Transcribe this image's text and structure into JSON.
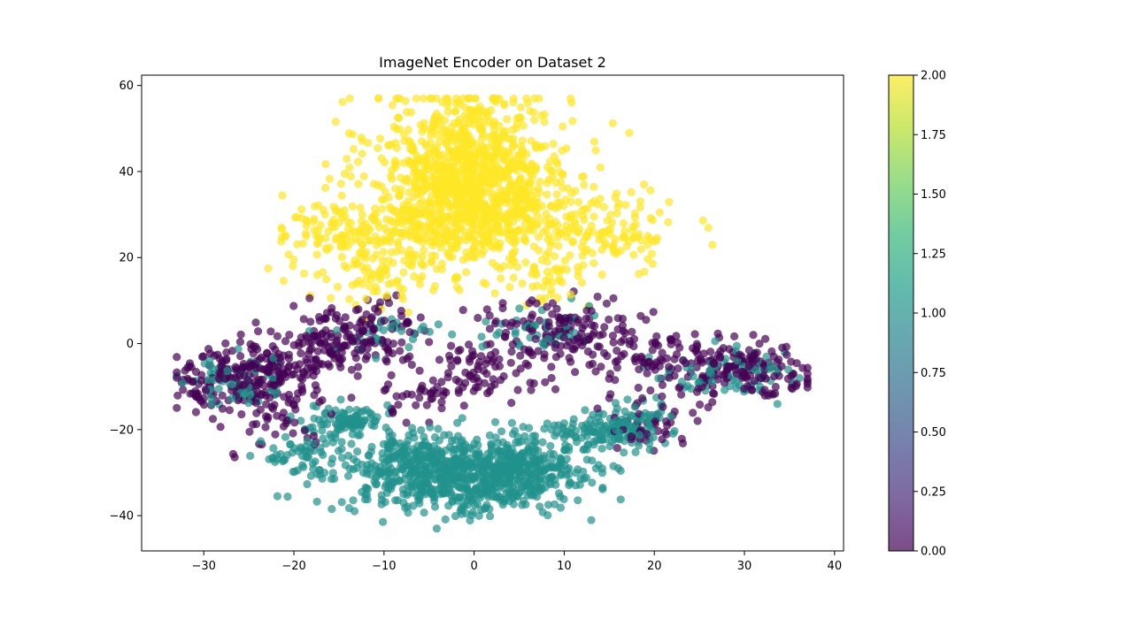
{
  "chart_data": {
    "type": "scatter",
    "title": "ImageNet Encoder on Dataset 2",
    "xlabel": "",
    "ylabel": "",
    "xlim": [
      -36.9,
      41.0
    ],
    "ylim": [
      -48.2,
      62.4
    ],
    "xticks": [
      -30,
      -20,
      -10,
      0,
      10,
      20,
      30,
      40
    ],
    "yticks": [
      -40,
      -20,
      0,
      20,
      40,
      60
    ],
    "grid": false,
    "legend": "none",
    "marker_alpha": 0.7,
    "colorbar": {
      "colormap": "viridis",
      "range": [
        0.0,
        2.0
      ],
      "ticks": [
        "0.00",
        "0.25",
        "0.50",
        "0.75",
        "1.00",
        "1.25",
        "1.50",
        "1.75",
        "2.00"
      ]
    },
    "class_colors": [
      "#440154",
      "#21918c",
      "#fde725"
    ],
    "clusters": [
      {
        "label": 2,
        "center": [
          -0.5,
          42.0
        ],
        "spread": [
          5.5,
          9.0
        ],
        "count": 700
      },
      {
        "label": 2,
        "center": [
          -0.5,
          33.0
        ],
        "spread": [
          4.0,
          7.0
        ],
        "count": 350
      },
      {
        "label": 2,
        "center": [
          -8.0,
          26.0
        ],
        "spread": [
          6.0,
          5.0
        ],
        "count": 180
      },
      {
        "label": 2,
        "center": [
          9.0,
          27.0
        ],
        "spread": [
          6.5,
          6.0
        ],
        "count": 170
      },
      {
        "label": 2,
        "center": [
          -15.0,
          27.0
        ],
        "spread": [
          4.0,
          3.0
        ],
        "count": 60
      },
      {
        "label": 2,
        "center": [
          17.0,
          25.0
        ],
        "spread": [
          3.5,
          2.5
        ],
        "count": 50
      },
      {
        "label": 2,
        "center": [
          -11.0,
          14.0
        ],
        "spread": [
          3.0,
          3.5
        ],
        "count": 60
      },
      {
        "label": 2,
        "center": [
          8.0,
          15.0
        ],
        "spread": [
          2.5,
          2.5
        ],
        "count": 40
      },
      {
        "label": 1,
        "center": [
          -1.0,
          -31.0
        ],
        "spread": [
          6.5,
          4.5
        ],
        "count": 650
      },
      {
        "label": 1,
        "center": [
          -7.0,
          -27.0
        ],
        "spread": [
          3.0,
          3.5
        ],
        "count": 120
      },
      {
        "label": 1,
        "center": [
          6.0,
          -27.0
        ],
        "spread": [
          3.0,
          3.5
        ],
        "count": 120
      },
      {
        "label": 1,
        "center": [
          -14.0,
          -18.0
        ],
        "spread": [
          2.0,
          1.8
        ],
        "count": 90
      },
      {
        "label": 1,
        "center": [
          17.0,
          -19.0
        ],
        "spread": [
          2.0,
          2.8
        ],
        "count": 110
      },
      {
        "label": 1,
        "center": [
          12.0,
          -21.0
        ],
        "spread": [
          2.0,
          2.0
        ],
        "count": 60
      },
      {
        "label": 1,
        "center": [
          -19.0,
          -25.0
        ],
        "spread": [
          2.5,
          3.0
        ],
        "count": 60
      },
      {
        "label": 1,
        "center": [
          -26.0,
          -9.0
        ],
        "spread": [
          3.0,
          3.0
        ],
        "count": 60
      },
      {
        "label": 1,
        "center": [
          28.0,
          -7.0
        ],
        "spread": [
          4.0,
          3.0
        ],
        "count": 70
      },
      {
        "label": 1,
        "center": [
          7.0,
          3.0
        ],
        "spread": [
          3.0,
          2.5
        ],
        "count": 40
      },
      {
        "label": 1,
        "center": [
          -10.0,
          2.0
        ],
        "spread": [
          3.0,
          2.5
        ],
        "count": 30
      },
      {
        "label": 0,
        "center": [
          -27.0,
          -8.0
        ],
        "spread": [
          3.5,
          3.5
        ],
        "count": 160
      },
      {
        "label": 0,
        "center": [
          -20.0,
          -5.0
        ],
        "spread": [
          3.0,
          3.5
        ],
        "count": 90
      },
      {
        "label": 0,
        "center": [
          -13.0,
          2.0
        ],
        "spread": [
          4.0,
          3.5
        ],
        "count": 150
      },
      {
        "label": 0,
        "center": [
          10.0,
          3.0
        ],
        "spread": [
          4.5,
          3.5
        ],
        "count": 150
      },
      {
        "label": 0,
        "center": [
          30.0,
          -6.0
        ],
        "spread": [
          4.0,
          3.0
        ],
        "count": 140
      },
      {
        "label": 0,
        "center": [
          22.0,
          -3.0
        ],
        "spread": [
          4.0,
          3.0
        ],
        "count": 80
      },
      {
        "label": 0,
        "center": [
          1.5,
          -6.0
        ],
        "spread": [
          4.0,
          3.0
        ],
        "count": 70
      },
      {
        "label": 0,
        "center": [
          -22.0,
          -17.0
        ],
        "spread": [
          3.0,
          3.5
        ],
        "count": 50
      },
      {
        "label": 0,
        "center": [
          19.0,
          -18.0
        ],
        "spread": [
          3.0,
          3.0
        ],
        "count": 50
      },
      {
        "label": 0,
        "center": [
          -6.0,
          -12.0
        ],
        "spread": [
          3.0,
          3.0
        ],
        "count": 40
      }
    ]
  }
}
